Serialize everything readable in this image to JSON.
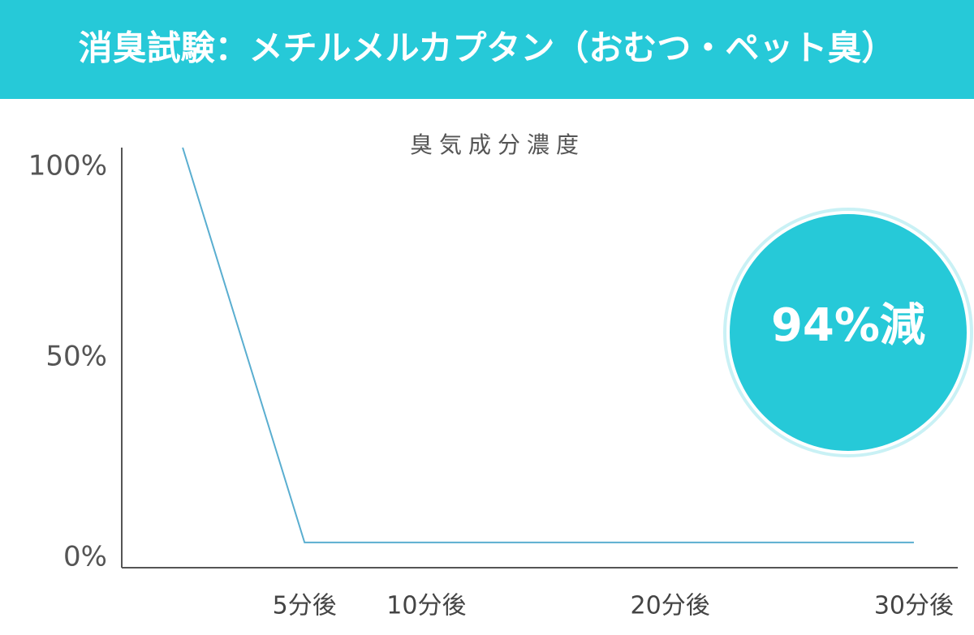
{
  "chart_data": {
    "type": "line",
    "title": "消臭試験：メチルメルカプタン（おむつ・ペット臭）",
    "subtitle": "臭気成分濃度",
    "x": [
      0,
      5,
      10,
      20,
      30
    ],
    "values": [
      100,
      6,
      6,
      6,
      6
    ],
    "color": "#5aaed0",
    "xlim": [
      -2.5,
      31.8
    ],
    "ylim": [
      0,
      100
    ],
    "xticks": [
      {
        "value": 5,
        "label": "5分後"
      },
      {
        "value": 10,
        "label": "10分後"
      },
      {
        "value": 20,
        "label": "20分後"
      },
      {
        "value": 30,
        "label": "30分後"
      }
    ],
    "yticks": [
      {
        "value": 0,
        "label": "0%"
      },
      {
        "value": 50,
        "label": "50%"
      },
      {
        "value": 100,
        "label": "100%"
      }
    ],
    "annotation": "94%減",
    "accent_color": "#26c9d8"
  }
}
